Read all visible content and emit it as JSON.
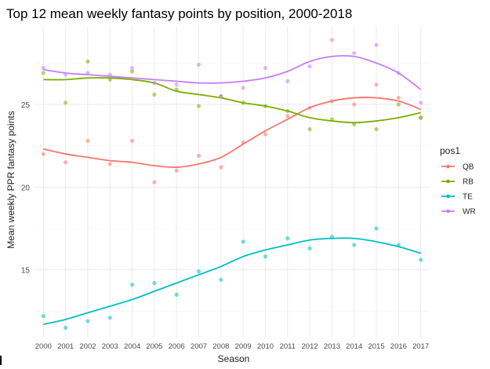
{
  "chart_data": {
    "type": "scatter",
    "title": "Top 12 mean weekly fantasy points by position, 2000-2018",
    "xlabel": "Season",
    "ylabel": "Mean weekly PPR fantasy points",
    "x": [
      2000,
      2001,
      2002,
      2003,
      2004,
      2005,
      2006,
      2007,
      2008,
      2009,
      2010,
      2011,
      2012,
      2013,
      2014,
      2015,
      2016,
      2017
    ],
    "xlim": [
      1999.6,
      2017.4
    ],
    "ylim": [
      10.9,
      29.7
    ],
    "yticks": [
      15,
      20,
      25
    ],
    "grid": true,
    "legend": {
      "title": "pos1",
      "position": "right"
    },
    "series": [
      {
        "name": "QB",
        "color": "#f8766d",
        "points": [
          22.0,
          21.5,
          22.8,
          21.4,
          22.8,
          20.3,
          21.0,
          21.9,
          21.2,
          22.7,
          23.2,
          24.3,
          24.8,
          25.2,
          25.0,
          26.2,
          25.4,
          24.2
        ],
        "trend": [
          22.3,
          22.0,
          21.8,
          21.6,
          21.5,
          21.3,
          21.2,
          21.4,
          21.8,
          22.6,
          23.4,
          24.1,
          24.8,
          25.2,
          25.4,
          25.4,
          25.2,
          24.7
        ]
      },
      {
        "name": "RB",
        "color": "#7cae00",
        "points": [
          26.9,
          25.1,
          27.6,
          26.5,
          27.0,
          25.6,
          25.9,
          24.9,
          25.5,
          25.1,
          24.9,
          24.6,
          23.5,
          24.1,
          23.8,
          23.5,
          25.0,
          24.2
        ],
        "trend": [
          26.5,
          26.5,
          26.6,
          26.6,
          26.5,
          26.3,
          25.8,
          25.6,
          25.4,
          25.1,
          24.9,
          24.6,
          24.2,
          24.0,
          23.9,
          24.0,
          24.2,
          24.5
        ]
      },
      {
        "name": "TE",
        "color": "#00bfc4",
        "points": [
          12.2,
          11.5,
          11.9,
          12.1,
          14.1,
          14.2,
          13.5,
          14.9,
          14.4,
          16.7,
          15.8,
          16.9,
          16.3,
          17.0,
          16.5,
          17.5,
          16.5,
          15.6
        ],
        "trend": [
          11.7,
          12.0,
          12.4,
          12.8,
          13.2,
          13.7,
          14.2,
          14.7,
          15.2,
          15.8,
          16.2,
          16.5,
          16.8,
          16.9,
          16.9,
          16.7,
          16.4,
          16.0
        ]
      },
      {
        "name": "WR",
        "color": "#c77cff",
        "points": [
          27.2,
          26.8,
          26.9,
          26.8,
          27.2,
          26.3,
          26.2,
          27.4,
          25.5,
          26.0,
          27.2,
          26.4,
          27.3,
          28.9,
          28.1,
          28.6,
          26.9,
          25.1
        ],
        "trend": [
          27.1,
          26.9,
          26.8,
          26.7,
          26.6,
          26.5,
          26.4,
          26.3,
          26.3,
          26.4,
          26.6,
          27.0,
          27.6,
          27.9,
          27.9,
          27.5,
          26.9,
          25.9
        ]
      }
    ]
  }
}
